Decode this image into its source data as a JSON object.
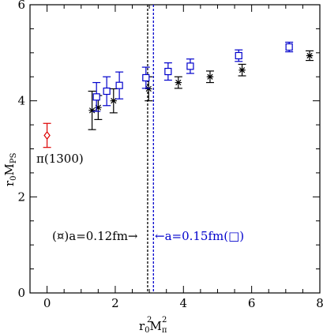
{
  "chart_data": {
    "type": "scatter",
    "xlabel_main": "r",
    "xlabel_sub1": "0",
    "xlabel_mid": "M",
    "xlabel_sub2": "π",
    "xlabel_sup": "2",
    "ylabel_main": "r",
    "ylabel_sub1": "0",
    "ylabel_mid": "M",
    "ylabel_sub2": "PS",
    "xlim": [
      -0.5,
      8
    ],
    "ylim": [
      0,
      6
    ],
    "xticks": [
      0,
      2,
      4,
      6,
      8
    ],
    "yticks": [
      0,
      2,
      4,
      6
    ],
    "grid": false,
    "series": [
      {
        "name": "a=0.12fm",
        "color": "#000000",
        "marker": "star-cross",
        "points": [
          {
            "x": 1.32,
            "y": 3.8,
            "err": 0.4
          },
          {
            "x": 1.5,
            "y": 3.86,
            "err": 0.25
          },
          {
            "x": 1.95,
            "y": 4.0,
            "err": 0.25
          },
          {
            "x": 2.98,
            "y": 4.25,
            "err": 0.25
          },
          {
            "x": 3.85,
            "y": 4.38,
            "err": 0.12
          },
          {
            "x": 4.78,
            "y": 4.5,
            "err": 0.12
          },
          {
            "x": 5.72,
            "y": 4.64,
            "err": 0.12
          },
          {
            "x": 7.7,
            "y": 4.94,
            "err": 0.1
          }
        ]
      },
      {
        "name": "a=0.15fm",
        "color": "#0000cc",
        "marker": "square",
        "points": [
          {
            "x": 1.45,
            "y": 4.08,
            "err": 0.3
          },
          {
            "x": 1.75,
            "y": 4.2,
            "err": 0.3
          },
          {
            "x": 2.12,
            "y": 4.32,
            "err": 0.28
          },
          {
            "x": 2.9,
            "y": 4.48,
            "err": 0.22
          },
          {
            "x": 3.55,
            "y": 4.61,
            "err": 0.18
          },
          {
            "x": 4.2,
            "y": 4.72,
            "err": 0.15
          },
          {
            "x": 5.62,
            "y": 4.94,
            "err": 0.12
          },
          {
            "x": 7.1,
            "y": 5.12,
            "err": 0.1
          }
        ]
      },
      {
        "name": "π(1300)",
        "color": "#dd0000",
        "marker": "diamond",
        "points": [
          {
            "x": 0.0,
            "y": 3.28,
            "err": 0.25
          }
        ]
      }
    ],
    "vlines": [
      {
        "x": 2.95,
        "color": "#000000",
        "style": "dashed"
      },
      {
        "x": 3.12,
        "color": "#0000cc",
        "style": "dashed"
      }
    ],
    "annotations": {
      "pi_label": "π(1300)",
      "black_label": "(¤)a=0.12fm→",
      "blue_label": "←a=0.15fm(□)"
    }
  }
}
